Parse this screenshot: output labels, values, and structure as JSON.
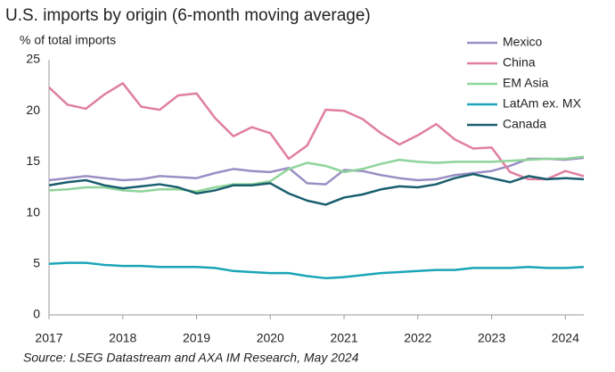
{
  "chart_data": {
    "type": "line",
    "title": "U.S. imports by origin (6-month moving average)",
    "ylabel": "% of total imports",
    "source": "Source: LSEG Datastream and AXA IM Research, May 2024",
    "x": [
      2017,
      2017.25,
      2017.5,
      2017.75,
      2018,
      2018.25,
      2018.5,
      2018.75,
      2019,
      2019.25,
      2019.5,
      2019.75,
      2020,
      2020.25,
      2020.5,
      2020.75,
      2021,
      2021.25,
      2021.5,
      2021.75,
      2022,
      2022.25,
      2022.5,
      2022.75,
      2023,
      2023.25,
      2023.5,
      2023.75,
      2024,
      2024.25
    ],
    "series": [
      {
        "name": "Mexico",
        "color": "#9b8ec4",
        "values": [
          13.2,
          13.4,
          13.6,
          13.4,
          13.2,
          13.3,
          13.6,
          13.5,
          13.4,
          13.9,
          14.3,
          14.1,
          14.0,
          14.4,
          12.9,
          12.8,
          14.2,
          14.1,
          13.7,
          13.4,
          13.2,
          13.3,
          13.7,
          13.9,
          14.1,
          14.6,
          15.3,
          15.3,
          15.2,
          15.4
        ]
      },
      {
        "name": "China",
        "color": "#e07fa0",
        "values": [
          22.3,
          20.6,
          20.2,
          21.6,
          22.7,
          20.4,
          20.1,
          21.5,
          21.7,
          19.3,
          17.5,
          18.4,
          17.8,
          15.3,
          16.6,
          20.1,
          20.0,
          19.2,
          17.8,
          16.7,
          17.6,
          18.7,
          17.2,
          16.3,
          16.4,
          14.0,
          13.3,
          13.3,
          14.1,
          13.6
        ]
      },
      {
        "name": "EM Asia",
        "color": "#8fd49a",
        "values": [
          12.2,
          12.3,
          12.5,
          12.5,
          12.2,
          12.1,
          12.3,
          12.3,
          12.1,
          12.5,
          12.8,
          12.8,
          13.1,
          14.3,
          14.9,
          14.6,
          14.0,
          14.3,
          14.8,
          15.2,
          15.0,
          14.9,
          15.0,
          15.0,
          15.0,
          15.1,
          15.2,
          15.3,
          15.3,
          15.5
        ]
      },
      {
        "name": "LatAm ex. MX",
        "color": "#1aa5b8",
        "values": [
          5.0,
          5.1,
          5.1,
          4.9,
          4.8,
          4.8,
          4.7,
          4.7,
          4.7,
          4.6,
          4.3,
          4.2,
          4.1,
          4.1,
          3.8,
          3.6,
          3.7,
          3.9,
          4.1,
          4.2,
          4.3,
          4.4,
          4.4,
          4.6,
          4.6,
          4.6,
          4.7,
          4.6,
          4.6,
          4.7
        ]
      },
      {
        "name": "Canada",
        "color": "#1a5e6e",
        "values": [
          12.7,
          13.0,
          13.2,
          12.7,
          12.4,
          12.6,
          12.8,
          12.5,
          11.9,
          12.2,
          12.7,
          12.7,
          12.9,
          11.9,
          11.2,
          10.8,
          11.5,
          11.8,
          12.3,
          12.6,
          12.5,
          12.8,
          13.4,
          13.8,
          13.4,
          13.0,
          13.6,
          13.3,
          13.4,
          13.3
        ]
      }
    ],
    "xlim": [
      2017,
      2024.25
    ],
    "xticks": [
      2017,
      2018,
      2019,
      2020,
      2021,
      2022,
      2023,
      2024
    ],
    "ylim": [
      0,
      25
    ],
    "yticks": [
      0,
      5,
      10,
      15,
      20,
      25
    ],
    "grid": false,
    "legend": "top-right"
  }
}
